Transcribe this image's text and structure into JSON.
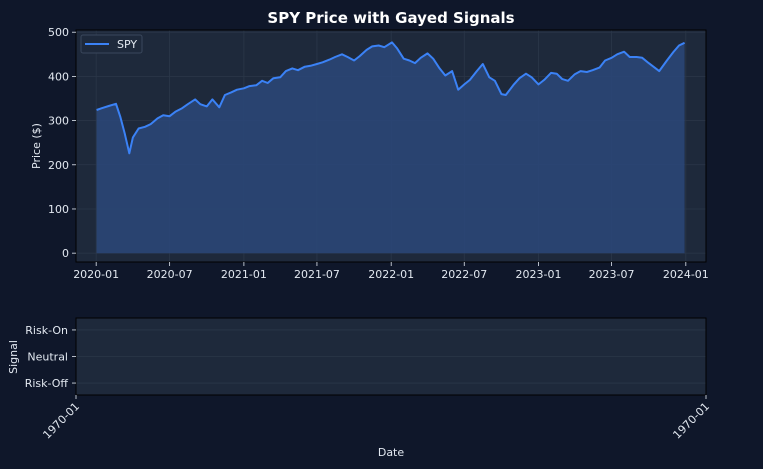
{
  "chart_data": [
    {
      "type": "area",
      "title": "SPY Price with Gayed Signals",
      "ylabel": "Price ($)",
      "xlabel": "",
      "ylim": [
        -20,
        505
      ],
      "yticks": [
        0,
        100,
        200,
        300,
        400,
        500
      ],
      "xlim": [
        "2019-11-12",
        "2024-02-20"
      ],
      "xtick_labels": [
        "2020-01",
        "2020-07",
        "2021-01",
        "2021-07",
        "2022-01",
        "2022-07",
        "2023-01",
        "2023-07",
        "2024-01"
      ],
      "xtick_dates": [
        "2020-01-01",
        "2020-07-01",
        "2021-01-01",
        "2021-07-01",
        "2022-01-01",
        "2022-07-01",
        "2023-01-01",
        "2023-07-01",
        "2024-01-01"
      ],
      "grid": true,
      "legend_position": "top-left",
      "series": [
        {
          "name": "SPY",
          "color": "#3b82f6",
          "fill_color": "#2a4677",
          "x": [
            "2020-01-02",
            "2020-01-15",
            "2020-02-01",
            "2020-02-19",
            "2020-03-01",
            "2020-03-12",
            "2020-03-23",
            "2020-04-01",
            "2020-04-15",
            "2020-05-01",
            "2020-05-15",
            "2020-06-01",
            "2020-06-15",
            "2020-07-01",
            "2020-07-15",
            "2020-08-01",
            "2020-08-15",
            "2020-09-02",
            "2020-09-15",
            "2020-10-01",
            "2020-10-15",
            "2020-11-01",
            "2020-11-15",
            "2020-12-01",
            "2020-12-15",
            "2021-01-01",
            "2021-01-15",
            "2021-02-01",
            "2021-02-15",
            "2021-03-01",
            "2021-03-15",
            "2021-04-01",
            "2021-04-15",
            "2021-05-01",
            "2021-05-15",
            "2021-06-01",
            "2021-06-15",
            "2021-07-01",
            "2021-07-15",
            "2021-08-01",
            "2021-08-15",
            "2021-09-01",
            "2021-09-15",
            "2021-10-01",
            "2021-10-15",
            "2021-11-01",
            "2021-11-15",
            "2021-12-01",
            "2021-12-15",
            "2022-01-03",
            "2022-01-15",
            "2022-02-01",
            "2022-02-15",
            "2022-03-01",
            "2022-03-15",
            "2022-04-01",
            "2022-04-15",
            "2022-05-01",
            "2022-05-15",
            "2022-06-01",
            "2022-06-16",
            "2022-07-01",
            "2022-07-15",
            "2022-08-01",
            "2022-08-16",
            "2022-09-01",
            "2022-09-15",
            "2022-10-01",
            "2022-10-12",
            "2022-11-01",
            "2022-11-15",
            "2022-12-01",
            "2022-12-15",
            "2023-01-01",
            "2023-01-15",
            "2023-02-01",
            "2023-02-15",
            "2023-03-01",
            "2023-03-15",
            "2023-04-01",
            "2023-04-15",
            "2023-05-01",
            "2023-05-15",
            "2023-06-01",
            "2023-06-15",
            "2023-07-01",
            "2023-07-15",
            "2023-08-01",
            "2023-08-15",
            "2023-09-01",
            "2023-09-15",
            "2023-10-01",
            "2023-10-27",
            "2023-11-15",
            "2023-12-01",
            "2023-12-15",
            "2023-12-29"
          ],
          "values": [
            324,
            328,
            333,
            338,
            308,
            270,
            226,
            262,
            282,
            286,
            292,
            305,
            312,
            310,
            320,
            328,
            337,
            348,
            337,
            332,
            348,
            330,
            358,
            364,
            370,
            373,
            378,
            380,
            390,
            385,
            396,
            398,
            412,
            418,
            414,
            422,
            424,
            428,
            432,
            438,
            444,
            450,
            444,
            436,
            446,
            460,
            468,
            470,
            466,
            477,
            464,
            440,
            436,
            430,
            442,
            452,
            440,
            418,
            402,
            412,
            370,
            382,
            392,
            412,
            428,
            398,
            390,
            360,
            358,
            382,
            396,
            406,
            398,
            382,
            392,
            408,
            406,
            394,
            390,
            405,
            412,
            410,
            414,
            420,
            436,
            442,
            450,
            456,
            444,
            444,
            442,
            430,
            412,
            436,
            455,
            470,
            476
          ]
        }
      ]
    },
    {
      "type": "line",
      "title": "",
      "xlabel": "Date",
      "ylabel": "Signal",
      "ytick_labels": [
        "Risk-On",
        "Neutral",
        "Risk-Off"
      ],
      "ytick_values": [
        1,
        0,
        -1
      ],
      "ylim": [
        -1.45,
        1.45
      ],
      "xtick_labels": [
        "1970-01",
        "1970-01"
      ],
      "grid": true,
      "series": []
    }
  ],
  "colors": {
    "figure_bg": "#0f172a",
    "axes_bg": "#1e293b",
    "grid": "#2b3749",
    "text": "#e2e8f0",
    "spine": "#000000"
  }
}
